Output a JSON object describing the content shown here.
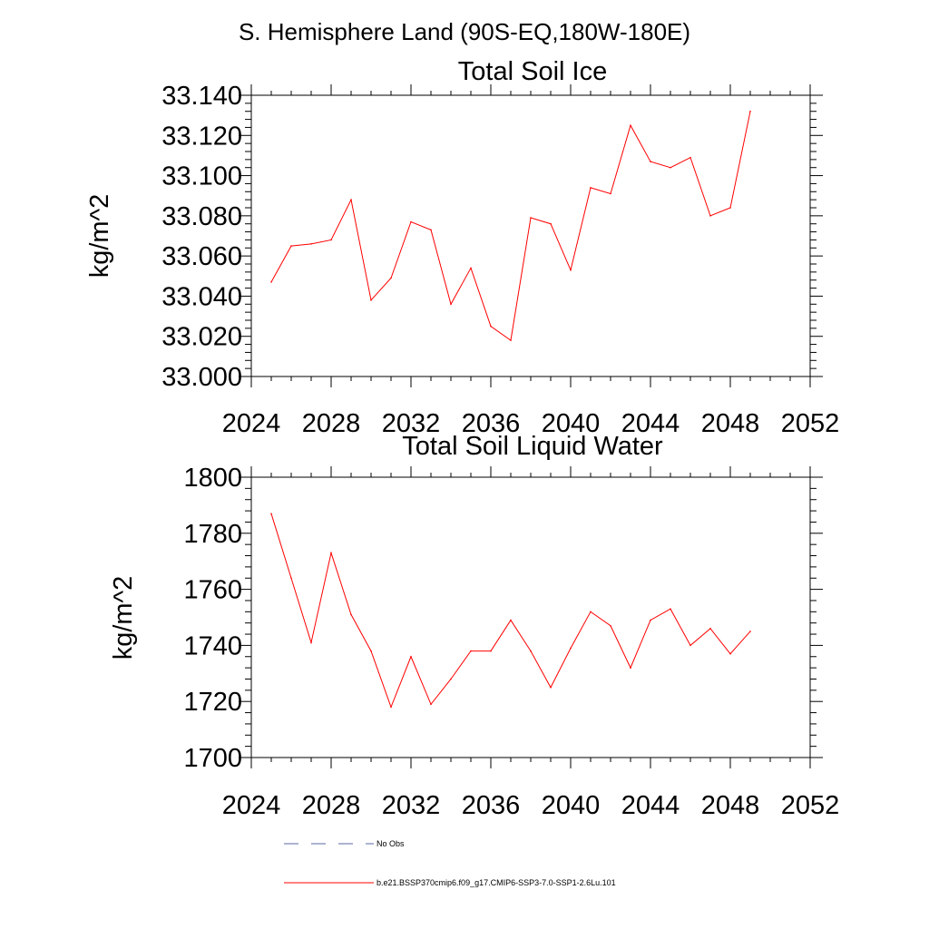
{
  "figure": {
    "title": "S. Hemisphere Land (90S-EQ,180W-180E)"
  },
  "colors": {
    "series_line": "#ff0000",
    "obs_line": "#5a6aa0",
    "axis": "#000000",
    "background": "#ffffff"
  },
  "chart_data": [
    {
      "type": "line",
      "title": "Total Soil Ice",
      "xlabel": "",
      "ylabel": "kg/m^2",
      "xlim": [
        2024,
        2052
      ],
      "ylim": [
        33.0,
        33.14
      ],
      "grid": false,
      "xticks": [
        2024,
        2028,
        2032,
        2036,
        2040,
        2044,
        2048,
        2052
      ],
      "xtick_labels": [
        "2024",
        "2028",
        "2032",
        "2036",
        "2040",
        "2044",
        "2048",
        "2052"
      ],
      "yticks": [
        33.0,
        33.02,
        33.04,
        33.06,
        33.08,
        33.1,
        33.12,
        33.14
      ],
      "ytick_labels": [
        "33.000",
        "33.020",
        "33.040",
        "33.060",
        "33.080",
        "33.100",
        "33.120",
        "33.140"
      ],
      "x": [
        2025,
        2026,
        2027,
        2028,
        2029,
        2030,
        2031,
        2032,
        2033,
        2034,
        2035,
        2036,
        2037,
        2038,
        2039,
        2040,
        2041,
        2042,
        2043,
        2044,
        2045,
        2046,
        2047,
        2048,
        2049
      ],
      "series": [
        {
          "name": "b.e21.BSSP370cmip6.f09_g17.CMIP6-SSP3-7.0-SSP1-2.6Lu.101",
          "values": [
            33.047,
            33.065,
            33.066,
            33.068,
            33.088,
            33.038,
            33.049,
            33.077,
            33.073,
            33.036,
            33.054,
            33.025,
            33.018,
            33.079,
            33.076,
            33.053,
            33.094,
            33.091,
            33.125,
            33.107,
            33.104,
            33.109,
            33.08,
            33.084,
            33.132
          ]
        }
      ]
    },
    {
      "type": "line",
      "title": "Total Soil Liquid Water",
      "xlabel": "",
      "ylabel": "kg/m^2",
      "xlim": [
        2024,
        2052
      ],
      "ylim": [
        1700,
        1800
      ],
      "grid": false,
      "xticks": [
        2024,
        2028,
        2032,
        2036,
        2040,
        2044,
        2048,
        2052
      ],
      "xtick_labels": [
        "2024",
        "2028",
        "2032",
        "2036",
        "2040",
        "2044",
        "2048",
        "2052"
      ],
      "yticks": [
        1700,
        1720,
        1740,
        1760,
        1780,
        1800
      ],
      "ytick_labels": [
        "1700",
        "1720",
        "1740",
        "1760",
        "1780",
        "1800"
      ],
      "x": [
        2025,
        2026,
        2027,
        2028,
        2029,
        2030,
        2031,
        2032,
        2033,
        2034,
        2035,
        2036,
        2037,
        2038,
        2039,
        2040,
        2041,
        2042,
        2043,
        2044,
        2045,
        2046,
        2047,
        2048,
        2049
      ],
      "series": [
        {
          "name": "b.e21.BSSP370cmip6.f09_g17.CMIP6-SSP3-7.0-SSP1-2.6Lu.101",
          "values": [
            1787,
            1764,
            1741,
            1773,
            1751,
            1738,
            1718,
            1736,
            1719,
            1728,
            1738,
            1738,
            1749,
            1738,
            1725,
            1739,
            1752,
            1747,
            1732,
            1749,
            1753,
            1740,
            1746,
            1737,
            1745
          ]
        }
      ]
    }
  ],
  "legend": {
    "placement": "bottom",
    "items": [
      {
        "label": "No Obs",
        "style": "dashed",
        "color_key": "obs_line"
      },
      {
        "label": "b.e21.BSSP370cmip6.f09_g17.CMIP6-SSP3-7.0-SSP1-2.6Lu.101",
        "style": "solid",
        "color_key": "series_line"
      }
    ]
  }
}
